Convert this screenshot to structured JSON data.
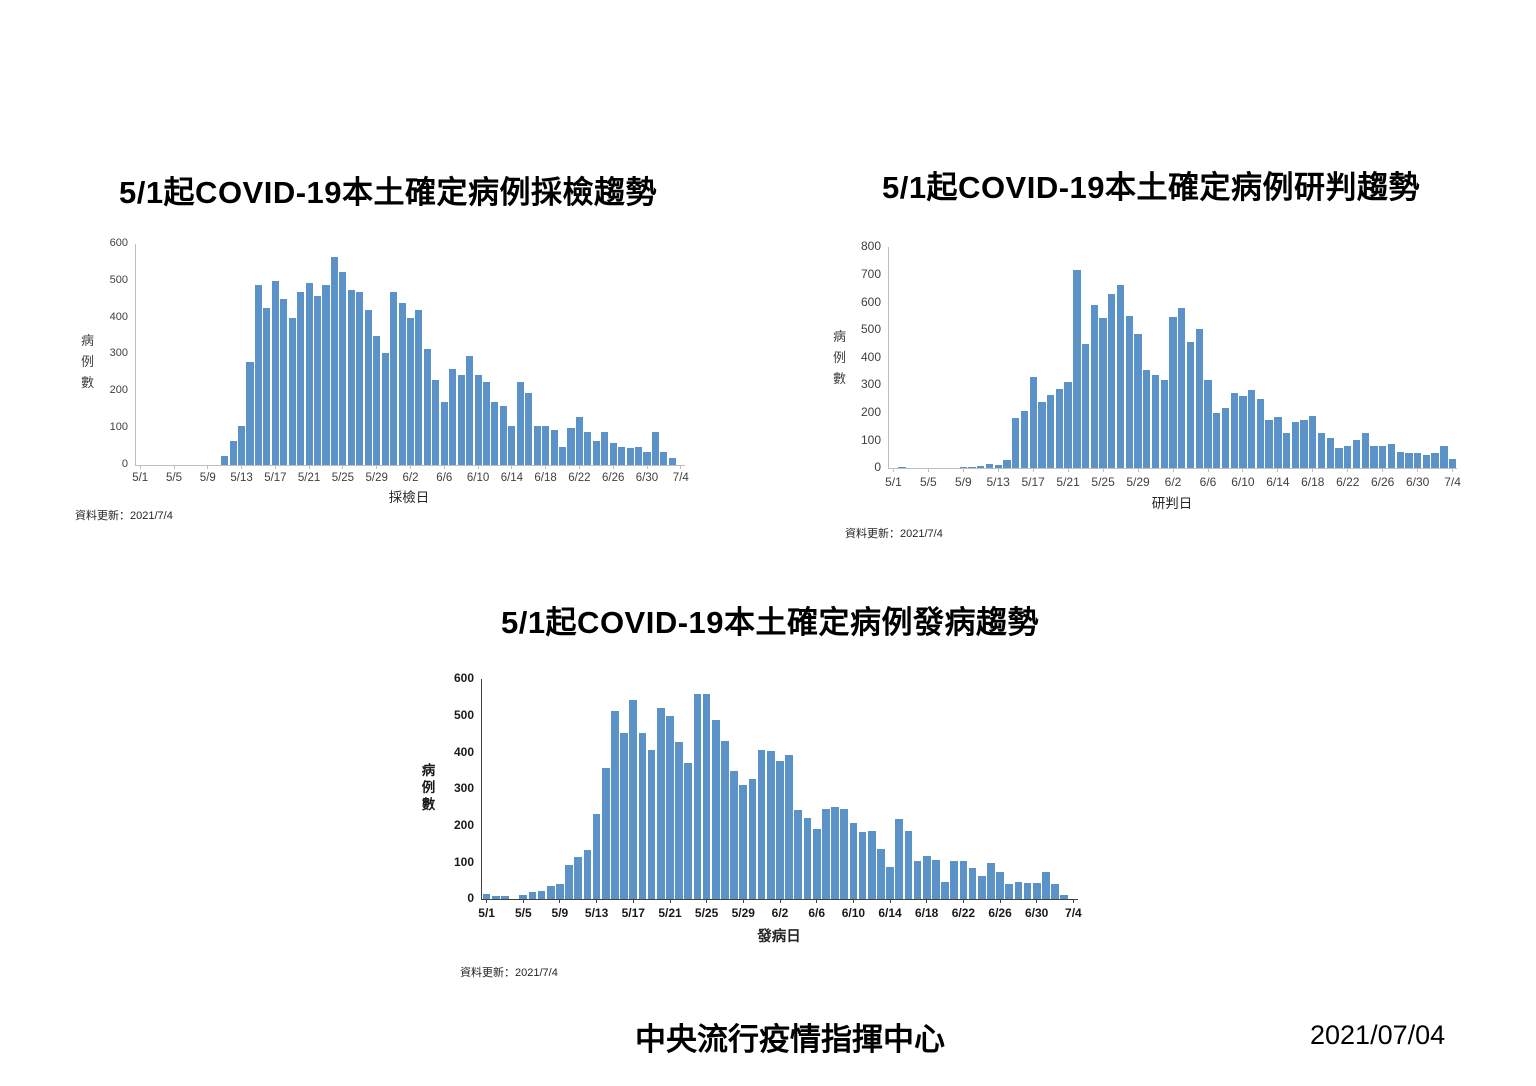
{
  "page": {
    "background": "#FFFFFF"
  },
  "colors": {
    "bar": "#5B93C9",
    "axis_light": "#BFBFBF",
    "axis_dark": "#404040",
    "tick_text": "#404040",
    "tick_text_bold": "#1A1A1A"
  },
  "footer": {
    "organization": "中央流行疫情指揮中心",
    "date": "2021/07/04"
  },
  "chart_data": [
    {
      "type": "bar",
      "title": "5/1起COVID-19本土確定病例採檢趨勢",
      "ylabel": "病例數",
      "xlabel": "採檢日",
      "note": "資料更新：2021/7/4",
      "ylim": [
        0,
        600
      ],
      "ytick_step": 100,
      "grid": false,
      "legend": false,
      "xtick_every": 4,
      "xtick_labels": [
        "5/1",
        "5/5",
        "5/9",
        "5/13",
        "5/17",
        "5/21",
        "5/25",
        "5/29",
        "6/2",
        "6/6",
        "6/10",
        "6/14",
        "6/18",
        "6/22",
        "6/26",
        "6/30",
        "7/4"
      ],
      "categories": [
        "5/1",
        "5/2",
        "5/3",
        "5/4",
        "5/5",
        "5/6",
        "5/7",
        "5/8",
        "5/9",
        "5/10",
        "5/11",
        "5/12",
        "5/13",
        "5/14",
        "5/15",
        "5/16",
        "5/17",
        "5/18",
        "5/19",
        "5/20",
        "5/21",
        "5/22",
        "5/23",
        "5/24",
        "5/25",
        "5/26",
        "5/27",
        "5/28",
        "5/29",
        "5/30",
        "5/31",
        "6/1",
        "6/2",
        "6/3",
        "6/4",
        "6/5",
        "6/6",
        "6/7",
        "6/8",
        "6/9",
        "6/10",
        "6/11",
        "6/12",
        "6/13",
        "6/14",
        "6/15",
        "6/16",
        "6/17",
        "6/18",
        "6/19",
        "6/20",
        "6/21",
        "6/22",
        "6/23",
        "6/24",
        "6/25",
        "6/26",
        "6/27",
        "6/28",
        "6/29",
        "6/30",
        "7/1",
        "7/2",
        "7/3",
        "7/4"
      ],
      "values": [
        0,
        0,
        0,
        0,
        0,
        0,
        0,
        0,
        0,
        0,
        25,
        65,
        105,
        280,
        490,
        425,
        500,
        450,
        400,
        470,
        495,
        460,
        490,
        565,
        525,
        475,
        470,
        420,
        350,
        305,
        470,
        440,
        400,
        420,
        315,
        230,
        170,
        260,
        245,
        295,
        245,
        225,
        170,
        160,
        105,
        225,
        195,
        105,
        105,
        95,
        50,
        100,
        130,
        90,
        65,
        90,
        60,
        48,
        46,
        50,
        36,
        90,
        36,
        18,
        0
      ]
    },
    {
      "type": "bar",
      "title": "5/1起COVID-19本土確定病例研判趨勢",
      "ylabel": "病例數",
      "xlabel": "研判日",
      "note": "資料更新：2021/7/4",
      "ylim": [
        0,
        800
      ],
      "ytick_step": 100,
      "grid": false,
      "legend": false,
      "xtick_every": 4,
      "xtick_labels": [
        "5/1",
        "5/5",
        "5/9",
        "5/13",
        "5/17",
        "5/21",
        "5/25",
        "5/29",
        "6/2",
        "6/6",
        "6/10",
        "6/14",
        "6/18",
        "6/22",
        "6/26",
        "6/30",
        "7/4"
      ],
      "categories": [
        "5/1",
        "5/2",
        "5/3",
        "5/4",
        "5/5",
        "5/6",
        "5/7",
        "5/8",
        "5/9",
        "5/10",
        "5/11",
        "5/12",
        "5/13",
        "5/14",
        "5/15",
        "5/16",
        "5/17",
        "5/18",
        "5/19",
        "5/20",
        "5/21",
        "5/22",
        "5/23",
        "5/24",
        "5/25",
        "5/26",
        "5/27",
        "5/28",
        "5/29",
        "5/30",
        "5/31",
        "6/1",
        "6/2",
        "6/3",
        "6/4",
        "6/5",
        "6/6",
        "6/7",
        "6/8",
        "6/9",
        "6/10",
        "6/11",
        "6/12",
        "6/13",
        "6/14",
        "6/15",
        "6/16",
        "6/17",
        "6/18",
        "6/19",
        "6/20",
        "6/21",
        "6/22",
        "6/23",
        "6/24",
        "6/25",
        "6/26",
        "6/27",
        "6/28",
        "6/29",
        "6/30",
        "7/1",
        "7/2",
        "7/3",
        "7/4"
      ],
      "values": [
        0,
        5,
        0,
        0,
        0,
        0,
        0,
        0,
        2,
        5,
        8,
        15,
        12,
        28,
        180,
        205,
        330,
        240,
        265,
        285,
        310,
        715,
        450,
        590,
        542,
        630,
        663,
        550,
        485,
        355,
        335,
        320,
        545,
        578,
        455,
        505,
        318,
        200,
        219,
        270,
        262,
        283,
        250,
        172,
        185,
        128,
        167,
        175,
        187,
        125,
        107,
        72,
        78,
        102,
        126,
        80,
        80,
        88,
        58,
        53,
        55,
        48,
        55,
        78,
        33
      ]
    },
    {
      "type": "bar",
      "title": "5/1起COVID-19本土確定病例發病趨勢",
      "ylabel": "病例數",
      "xlabel": "發病日",
      "note": "資料更新：2021/7/4",
      "ylim": [
        0,
        600
      ],
      "ytick_step": 100,
      "grid": false,
      "legend": false,
      "xtick_every": 4,
      "xtick_labels": [
        "5/1",
        "5/5",
        "5/9",
        "5/13",
        "5/17",
        "5/21",
        "5/25",
        "5/29",
        "6/2",
        "6/6",
        "6/10",
        "6/14",
        "6/18",
        "6/22",
        "6/26",
        "6/30",
        "7/4"
      ],
      "categories": [
        "5/1",
        "5/2",
        "5/3",
        "5/4",
        "5/5",
        "5/6",
        "5/7",
        "5/8",
        "5/9",
        "5/10",
        "5/11",
        "5/12",
        "5/13",
        "5/14",
        "5/15",
        "5/16",
        "5/17",
        "5/18",
        "5/19",
        "5/20",
        "5/21",
        "5/22",
        "5/23",
        "5/24",
        "5/25",
        "5/26",
        "5/27",
        "5/28",
        "5/29",
        "5/30",
        "5/31",
        "6/1",
        "6/2",
        "6/3",
        "6/4",
        "6/5",
        "6/6",
        "6/7",
        "6/8",
        "6/9",
        "6/10",
        "6/11",
        "6/12",
        "6/13",
        "6/14",
        "6/15",
        "6/16",
        "6/17",
        "6/18",
        "6/19",
        "6/20",
        "6/21",
        "6/22",
        "6/23",
        "6/24",
        "6/25",
        "6/26",
        "6/27",
        "6/28",
        "6/29",
        "6/30",
        "7/1",
        "7/2",
        "7/3",
        "7/4"
      ],
      "values": [
        13,
        9,
        9,
        0,
        11,
        19,
        21,
        35,
        42,
        94,
        114,
        135,
        233,
        358,
        514,
        452,
        543,
        452,
        407,
        522,
        498,
        429,
        371,
        558,
        560,
        488,
        430,
        348,
        310,
        328,
        407,
        405,
        376,
        394,
        243,
        220,
        190,
        245,
        250,
        246,
        208,
        182,
        185,
        136,
        88,
        217,
        185,
        104,
        117,
        106,
        46,
        104,
        104,
        84,
        62,
        99,
        73,
        40,
        46,
        44,
        44,
        73,
        42,
        12,
        0
      ]
    }
  ]
}
